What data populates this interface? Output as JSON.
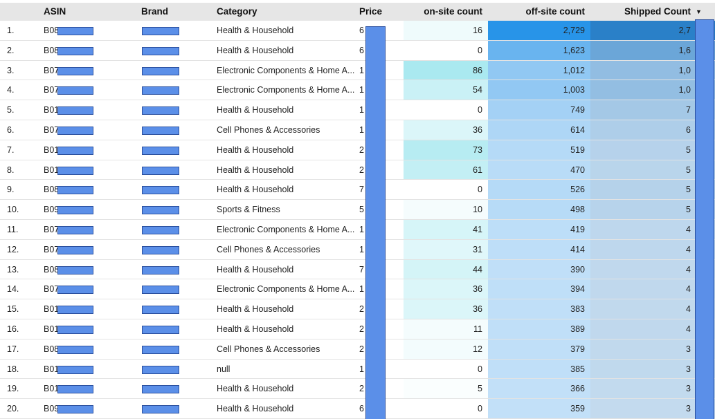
{
  "header": {
    "asin": "ASIN",
    "brand": "Brand",
    "category": "Category",
    "price": "Price",
    "onsite": "on-site count",
    "offsite": "off-site count",
    "shipped": "Shipped Count"
  },
  "table": {
    "rows": [
      {
        "rank": "1.",
        "asin": "B08",
        "category": "Health & Household",
        "price": "6",
        "onsite": 16,
        "offsite": {
          "value": 2729,
          "label": "2,729"
        },
        "shipped": "2,7"
      },
      {
        "rank": "2.",
        "asin": "B08",
        "category": "Health & Household",
        "price": "6",
        "onsite": 0,
        "offsite": {
          "value": 1623,
          "label": "1,623"
        },
        "shipped": "1,6"
      },
      {
        "rank": "3.",
        "asin": "B07",
        "category": "Electronic Components & Home A...",
        "price": "1",
        "onsite": 86,
        "offsite": {
          "value": 1012,
          "label": "1,012"
        },
        "shipped": "1,0"
      },
      {
        "rank": "4.",
        "asin": "B07",
        "category": "Electronic Components & Home A...",
        "price": "1",
        "onsite": 54,
        "offsite": {
          "value": 1003,
          "label": "1,003"
        },
        "shipped": "1,0"
      },
      {
        "rank": "5.",
        "asin": "B01",
        "category": "Health & Household",
        "price": "1",
        "onsite": 0,
        "offsite": 749,
        "shipped": "7"
      },
      {
        "rank": "6.",
        "asin": "B07",
        "category": "Cell Phones & Accessories",
        "price": "1",
        "onsite": 36,
        "offsite": 614,
        "shipped": "6"
      },
      {
        "rank": "7.",
        "asin": "B01",
        "category": "Health & Household",
        "price": "2",
        "onsite": 73,
        "offsite": 519,
        "shipped": "5"
      },
      {
        "rank": "8.",
        "asin": "B01",
        "category": "Health & Household",
        "price": "2",
        "onsite": 61,
        "offsite": 470,
        "shipped": "5"
      },
      {
        "rank": "9.",
        "asin": "B08",
        "category": "Health & Household",
        "price": "7",
        "onsite": 0,
        "offsite": 526,
        "shipped": "5"
      },
      {
        "rank": "10.",
        "asin": "B09",
        "category": "Sports & Fitness",
        "price": "5",
        "onsite": 10,
        "offsite": 498,
        "shipped": "5"
      },
      {
        "rank": "11.",
        "asin": "B07",
        "category": "Electronic Components & Home A...",
        "price": "1",
        "onsite": 41,
        "offsite": 419,
        "shipped": "4"
      },
      {
        "rank": "12.",
        "asin": "B07",
        "category": "Cell Phones & Accessories",
        "price": "1",
        "onsite": 31,
        "offsite": 414,
        "shipped": "4"
      },
      {
        "rank": "13.",
        "asin": "B08",
        "category": "Health & Household",
        "price": "7",
        "onsite": 44,
        "offsite": 390,
        "shipped": "4"
      },
      {
        "rank": "14.",
        "asin": "B07",
        "category": "Electronic Components & Home A...",
        "price": "1",
        "onsite": 36,
        "offsite": 394,
        "shipped": "4"
      },
      {
        "rank": "15.",
        "asin": "B01",
        "category": "Health & Household",
        "price": "2",
        "onsite": 36,
        "offsite": 383,
        "shipped": "4"
      },
      {
        "rank": "16.",
        "asin": "B01",
        "category": "Health & Household",
        "price": "2",
        "onsite": 11,
        "offsite": 389,
        "shipped": "4"
      },
      {
        "rank": "17.",
        "asin": "B08",
        "category": "Cell Phones & Accessories",
        "price": "2",
        "onsite": 12,
        "offsite": 379,
        "shipped": "3"
      },
      {
        "rank": "18.",
        "asin": "B01",
        "category": "null",
        "price": "1",
        "onsite": 0,
        "offsite": 385,
        "shipped": "3"
      },
      {
        "rank": "19.",
        "asin": "B01",
        "category": "Health & Household",
        "price": "2",
        "onsite": 5,
        "offsite": 366,
        "shipped": "3"
      },
      {
        "rank": "20.",
        "asin": "B09",
        "category": "Health & Household",
        "price": "6",
        "onsite": 0,
        "offsite": 359,
        "shipped": "3"
      }
    ]
  }
}
